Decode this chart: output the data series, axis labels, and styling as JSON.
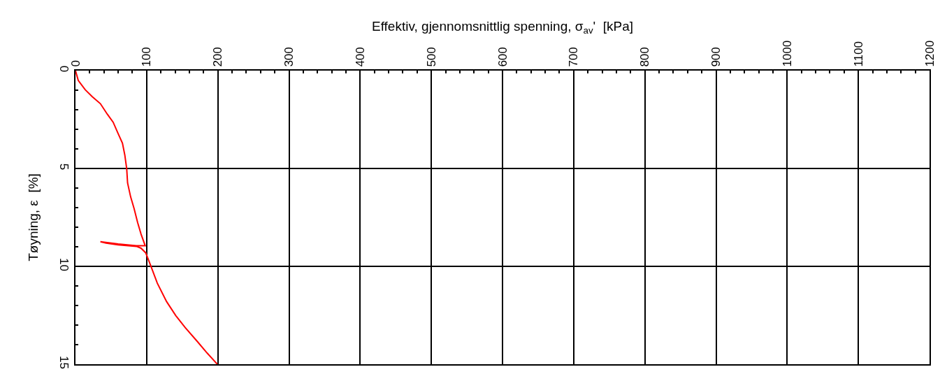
{
  "chart_data": {
    "type": "line",
    "xlabel": "Effektiv, gjennomsnittlig spenning, σ$_{av}$'  [kPa]",
    "ylabel": "Tøyning, ε  [%]",
    "series": [
      {
        "color": "#ff0000",
        "x": [
          0,
          3.9,
          13.7,
          23.5,
          35,
          44.8,
          53,
          59.5,
          66,
          69.3,
          72,
          73.2,
          77.5,
          82.4,
          87.3,
          92.2,
          98,
          85.6,
          60,
          35,
          43,
          60,
          85.6,
          92,
          98.7,
          105,
          115,
          128,
          141,
          154,
          171,
          185,
          199.3
        ],
        "values": [
          0,
          0.5,
          0.98,
          1.33,
          1.69,
          2.23,
          2.64,
          3.18,
          3.71,
          4.31,
          5.02,
          5.74,
          6.45,
          7.05,
          7.76,
          8.36,
          8.95,
          8.95,
          8.86,
          8.74,
          8.81,
          8.9,
          8.98,
          9.07,
          9.31,
          9.9,
          10.86,
          11.8,
          12.52,
          13.12,
          13.83,
          14.43,
          15
        ]
      }
    ],
    "xlim": [
      0,
      1200
    ],
    "xticks": [
      0,
      {
        "value": 20,
        "label": null
      },
      {
        "value": 40,
        "label": null
      },
      {
        "value": 60,
        "label": null
      },
      {
        "value": 80,
        "label": null
      },
      100,
      {
        "value": 120,
        "label": null
      },
      {
        "value": 140,
        "label": null
      },
      {
        "value": 160,
        "label": null
      },
      {
        "value": 180,
        "label": null
      },
      200,
      {
        "value": 220,
        "label": null
      },
      {
        "value": 240,
        "label": null
      },
      {
        "value": 260,
        "label": null
      },
      {
        "value": 280,
        "label": null
      },
      300,
      {
        "value": 320,
        "label": null
      },
      {
        "value": 340,
        "label": null
      },
      {
        "value": 360,
        "label": null
      },
      {
        "value": 380,
        "label": null
      },
      400,
      {
        "value": 420,
        "label": null
      },
      {
        "value": 440,
        "label": null
      },
      {
        "value": 460,
        "label": null
      },
      {
        "value": 480,
        "label": null
      },
      500,
      {
        "value": 520,
        "label": null
      },
      {
        "value": 540,
        "label": null
      },
      {
        "value": 560,
        "label": null
      },
      {
        "value": 580,
        "label": null
      },
      600,
      {
        "value": 620,
        "label": null
      },
      {
        "value": 640,
        "label": null
      },
      {
        "value": 660,
        "label": null
      },
      {
        "value": 680,
        "label": null
      },
      700,
      {
        "value": 720,
        "label": null
      },
      {
        "value": 740,
        "label": null
      },
      {
        "value": 760,
        "label": null
      },
      {
        "value": 780,
        "label": null
      },
      800,
      {
        "value": 820,
        "label": null
      },
      {
        "value": 840,
        "label": null
      },
      {
        "value": 860,
        "label": null
      },
      {
        "value": 880,
        "label": null
      },
      900,
      {
        "value": 920,
        "label": null
      },
      {
        "value": 940,
        "label": null
      },
      {
        "value": 960,
        "label": null
      },
      {
        "value": 980,
        "label": null
      },
      1000,
      {
        "value": 1020,
        "label": null
      },
      {
        "value": 1040,
        "label": null
      },
      {
        "value": 1060,
        "label": null
      },
      {
        "value": 1080,
        "label": null
      },
      1100,
      {
        "value": 1120,
        "label": null
      },
      {
        "value": 1140,
        "label": null
      },
      {
        "value": 1160,
        "label": null
      },
      {
        "value": 1180,
        "label": null
      },
      1200
    ],
    "ylim": [
      15,
      0
    ],
    "yticks": [
      0,
      {
        "value": 1,
        "label": null
      },
      {
        "value": 2,
        "label": null
      },
      {
        "value": 3,
        "label": null
      },
      {
        "value": 4,
        "label": null
      },
      5,
      {
        "value": 6,
        "label": null
      },
      {
        "value": 7,
        "label": null
      },
      {
        "value": 8,
        "label": null
      },
      {
        "value": 9,
        "label": null
      },
      10,
      {
        "value": 11,
        "label": null
      },
      {
        "value": 12,
        "label": null
      },
      {
        "value": 13,
        "label": null
      },
      {
        "value": 14,
        "label": null
      },
      15
    ],
    "grid": true,
    "marker": "none",
    "line_style": "solid"
  }
}
